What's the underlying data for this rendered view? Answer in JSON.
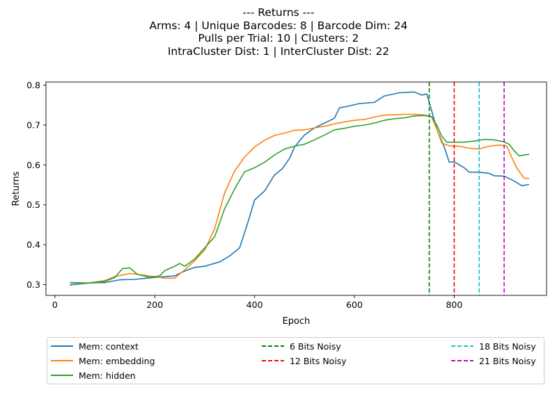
{
  "chart_data": {
    "type": "line",
    "title_lines": [
      "--- Returns ---",
      "Arms: 4 | Unique Barcodes: 8 | Barcode Dim: 24",
      "Pulls per Trial: 10 | Clusters: 2",
      "IntraCluster Dist: 1 | InterCluster Dist: 22"
    ],
    "xlabel": "Epoch",
    "ylabel": "Returns",
    "xlim": [
      -18,
      985
    ],
    "ylim": [
      0.273,
      0.808
    ],
    "xticks": [
      0,
      200,
      400,
      600,
      800
    ],
    "yticks": [
      0.3,
      0.4,
      0.5,
      0.6,
      0.7,
      0.8
    ],
    "grid": false,
    "legend_placement": "below",
    "series": [
      {
        "name": "Mem: context",
        "color": "#1f77b4",
        "style": "solid",
        "points": [
          [
            30,
            0.305
          ],
          [
            60,
            0.304
          ],
          [
            100,
            0.305
          ],
          [
            130,
            0.312
          ],
          [
            160,
            0.313
          ],
          [
            200,
            0.318
          ],
          [
            240,
            0.322
          ],
          [
            260,
            0.334
          ],
          [
            280,
            0.343
          ],
          [
            300,
            0.346
          ],
          [
            330,
            0.357
          ],
          [
            350,
            0.372
          ],
          [
            370,
            0.392
          ],
          [
            380,
            0.43
          ],
          [
            390,
            0.47
          ],
          [
            400,
            0.512
          ],
          [
            420,
            0.535
          ],
          [
            440,
            0.575
          ],
          [
            455,
            0.59
          ],
          [
            470,
            0.616
          ],
          [
            480,
            0.645
          ],
          [
            500,
            0.675
          ],
          [
            520,
            0.693
          ],
          [
            540,
            0.705
          ],
          [
            560,
            0.717
          ],
          [
            570,
            0.743
          ],
          [
            590,
            0.748
          ],
          [
            610,
            0.754
          ],
          [
            640,
            0.757
          ],
          [
            660,
            0.773
          ],
          [
            690,
            0.781
          ],
          [
            720,
            0.783
          ],
          [
            735,
            0.775
          ],
          [
            745,
            0.778
          ],
          [
            755,
            0.735
          ],
          [
            765,
            0.69
          ],
          [
            780,
            0.645
          ],
          [
            790,
            0.607
          ],
          [
            800,
            0.608
          ],
          [
            820,
            0.593
          ],
          [
            830,
            0.582
          ],
          [
            850,
            0.582
          ],
          [
            870,
            0.579
          ],
          [
            880,
            0.573
          ],
          [
            900,
            0.572
          ],
          [
            920,
            0.56
          ],
          [
            935,
            0.548
          ],
          [
            950,
            0.551
          ]
        ]
      },
      {
        "name": "Mem: embedding",
        "color": "#ff7f0e",
        "style": "solid",
        "points": [
          [
            30,
            0.3
          ],
          [
            60,
            0.303
          ],
          [
            100,
            0.31
          ],
          [
            120,
            0.32
          ],
          [
            150,
            0.328
          ],
          [
            170,
            0.325
          ],
          [
            200,
            0.32
          ],
          [
            220,
            0.316
          ],
          [
            240,
            0.316
          ],
          [
            260,
            0.337
          ],
          [
            280,
            0.36
          ],
          [
            300,
            0.387
          ],
          [
            320,
            0.44
          ],
          [
            340,
            0.53
          ],
          [
            360,
            0.585
          ],
          [
            380,
            0.62
          ],
          [
            400,
            0.645
          ],
          [
            420,
            0.662
          ],
          [
            440,
            0.674
          ],
          [
            460,
            0.68
          ],
          [
            480,
            0.687
          ],
          [
            500,
            0.688
          ],
          [
            520,
            0.693
          ],
          [
            540,
            0.697
          ],
          [
            560,
            0.703
          ],
          [
            580,
            0.708
          ],
          [
            600,
            0.712
          ],
          [
            620,
            0.714
          ],
          [
            640,
            0.72
          ],
          [
            660,
            0.725
          ],
          [
            680,
            0.726
          ],
          [
            700,
            0.727
          ],
          [
            720,
            0.727
          ],
          [
            735,
            0.726
          ],
          [
            745,
            0.724
          ],
          [
            755,
            0.72
          ],
          [
            765,
            0.69
          ],
          [
            775,
            0.655
          ],
          [
            790,
            0.648
          ],
          [
            810,
            0.647
          ],
          [
            830,
            0.642
          ],
          [
            850,
            0.64
          ],
          [
            870,
            0.647
          ],
          [
            890,
            0.65
          ],
          [
            905,
            0.648
          ],
          [
            915,
            0.62
          ],
          [
            925,
            0.593
          ],
          [
            940,
            0.567
          ],
          [
            950,
            0.566
          ]
        ]
      },
      {
        "name": "Mem: hidden",
        "color": "#2ca02c",
        "style": "solid",
        "points": [
          [
            30,
            0.299
          ],
          [
            60,
            0.303
          ],
          [
            100,
            0.308
          ],
          [
            120,
            0.318
          ],
          [
            135,
            0.34
          ],
          [
            150,
            0.342
          ],
          [
            165,
            0.326
          ],
          [
            190,
            0.318
          ],
          [
            210,
            0.322
          ],
          [
            220,
            0.335
          ],
          [
            240,
            0.346
          ],
          [
            250,
            0.353
          ],
          [
            260,
            0.346
          ],
          [
            280,
            0.364
          ],
          [
            300,
            0.392
          ],
          [
            320,
            0.42
          ],
          [
            340,
            0.49
          ],
          [
            360,
            0.54
          ],
          [
            380,
            0.583
          ],
          [
            400,
            0.593
          ],
          [
            420,
            0.607
          ],
          [
            440,
            0.625
          ],
          [
            460,
            0.64
          ],
          [
            480,
            0.647
          ],
          [
            500,
            0.652
          ],
          [
            520,
            0.663
          ],
          [
            540,
            0.675
          ],
          [
            560,
            0.688
          ],
          [
            580,
            0.692
          ],
          [
            600,
            0.697
          ],
          [
            620,
            0.7
          ],
          [
            640,
            0.705
          ],
          [
            660,
            0.712
          ],
          [
            680,
            0.716
          ],
          [
            700,
            0.718
          ],
          [
            720,
            0.723
          ],
          [
            740,
            0.724
          ],
          [
            755,
            0.721
          ],
          [
            765,
            0.7
          ],
          [
            775,
            0.672
          ],
          [
            785,
            0.657
          ],
          [
            800,
            0.657
          ],
          [
            820,
            0.657
          ],
          [
            840,
            0.66
          ],
          [
            860,
            0.664
          ],
          [
            880,
            0.663
          ],
          [
            900,
            0.658
          ],
          [
            910,
            0.652
          ],
          [
            920,
            0.636
          ],
          [
            930,
            0.623
          ],
          [
            950,
            0.627
          ]
        ]
      },
      {
        "name": "6 Bits Noisy",
        "color": "#008000",
        "style": "dashed",
        "vline": 750
      },
      {
        "name": "12 Bits Noisy",
        "color": "#ff0000",
        "style": "dashed",
        "vline": 800
      },
      {
        "name": "18 Bits Noisy",
        "color": "#17becf",
        "style": "dashed",
        "vline": 850
      },
      {
        "name": "21 Bits Noisy",
        "color": "#bf00bf",
        "style": "dashed",
        "vline": 900
      }
    ]
  }
}
